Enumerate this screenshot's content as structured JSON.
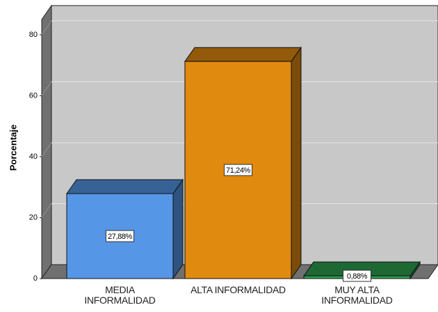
{
  "chart_data": {
    "type": "bar3d",
    "ylabel": "Porcentaje",
    "categories": [
      "MEDIA INFORMALIDAD",
      "ALTA INFORMALIDAD",
      "MUY ALTA INFORMALIDAD"
    ],
    "values": [
      27.88,
      71.24,
      0.88
    ],
    "value_labels": [
      "27,88%",
      "71,24%",
      "0,88%"
    ],
    "colors": [
      "#5596e6",
      "#e08a10",
      "#2ea050"
    ],
    "ylim": [
      0,
      85
    ],
    "yticks": [
      0,
      20,
      40,
      60,
      80
    ],
    "grid": true
  }
}
